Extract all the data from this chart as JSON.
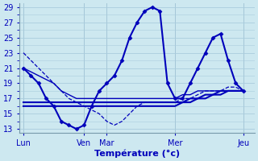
{
  "xlabel": "Température (°c)",
  "ylim": [
    12.5,
    29.5
  ],
  "yticks": [
    13,
    15,
    17,
    19,
    21,
    23,
    25,
    27,
    29
  ],
  "background_color": "#cde8f0",
  "grid_color": "#aaccdd",
  "line_color": "#0000bb",
  "day_labels": [
    "Lun",
    "Ven",
    "Mar",
    "Mer",
    "Jeu"
  ],
  "day_positions": [
    0,
    8,
    11,
    20,
    29
  ],
  "xlim": [
    -0.5,
    30.5
  ],
  "series": [
    {
      "x": [
        0,
        1,
        2,
        3,
        4,
        5,
        6,
        7,
        8,
        9,
        10,
        11,
        12,
        13,
        14,
        15,
        16,
        17,
        18,
        19,
        20,
        21,
        22,
        23,
        24,
        25,
        26,
        27,
        28,
        29
      ],
      "y": [
        21,
        20.5,
        20,
        19.5,
        19,
        18,
        17.5,
        17,
        17,
        17,
        17,
        17,
        17,
        17,
        17,
        17,
        17,
        17,
        17,
        17,
        17,
        17.5,
        17.5,
        18,
        18,
        18,
        18,
        18,
        18,
        18
      ],
      "linestyle": "-",
      "linewidth": 1.0,
      "marker": null
    },
    {
      "x": [
        0,
        1,
        2,
        3,
        4,
        5,
        6,
        7,
        8,
        9,
        10,
        11,
        12,
        13,
        14,
        15,
        16,
        17,
        18,
        19,
        20,
        21,
        22,
        23,
        24,
        25,
        26,
        27,
        28,
        29
      ],
      "y": [
        23,
        22,
        21,
        20,
        19,
        18,
        17,
        16.5,
        16,
        15.5,
        15,
        14,
        13.5,
        14,
        15,
        16,
        16.5,
        16.5,
        16.5,
        16.5,
        16.5,
        17,
        17,
        17.5,
        18,
        18,
        18,
        18.5,
        18.5,
        18
      ],
      "linestyle": "--",
      "linewidth": 0.9,
      "marker": null
    },
    {
      "x": [
        0,
        1,
        2,
        3,
        4,
        5,
        6,
        7,
        8,
        9,
        10,
        11,
        12,
        13,
        14,
        15,
        16,
        17,
        18,
        19,
        20,
        21,
        22,
        23,
        24,
        25,
        26,
        27,
        28,
        29
      ],
      "y": [
        16.5,
        16.5,
        16.5,
        16.5,
        16.5,
        16.5,
        16.5,
        16.5,
        16.5,
        16.5,
        16.5,
        16.5,
        16.5,
        16.5,
        16.5,
        16.5,
        16.5,
        16.5,
        16.5,
        16.5,
        16.5,
        16.5,
        17,
        17,
        17.5,
        17.5,
        18,
        18,
        18,
        18
      ],
      "linestyle": "-",
      "linewidth": 1.5,
      "marker": null
    },
    {
      "x": [
        0,
        1,
        2,
        3,
        4,
        5,
        6,
        7,
        8,
        9,
        10,
        11,
        12,
        13,
        14,
        15,
        16,
        17,
        18,
        19,
        20,
        21,
        22,
        23,
        24,
        25,
        26,
        27,
        28,
        29
      ],
      "y": [
        16,
        16,
        16,
        16,
        16,
        16,
        16,
        16,
        16,
        16,
        16,
        16,
        16,
        16,
        16,
        16,
        16,
        16,
        16,
        16,
        16,
        16.5,
        16.5,
        17,
        17,
        17.5,
        17.5,
        18,
        18,
        18
      ],
      "linestyle": "-",
      "linewidth": 1.5,
      "marker": null
    }
  ],
  "main_series": {
    "x": [
      0,
      1,
      2,
      3,
      4,
      5,
      6,
      7,
      8,
      9,
      10,
      11,
      12,
      13,
      14,
      15,
      16,
      17,
      18,
      19,
      20,
      21,
      22,
      23,
      24,
      25,
      26,
      27,
      28,
      29
    ],
    "y": [
      21,
      20,
      19,
      17,
      16,
      14,
      13.5,
      13,
      13.5,
      16,
      18,
      19,
      20,
      22,
      25,
      27,
      28.5,
      29,
      28.5,
      19,
      17,
      17,
      19,
      21,
      23,
      25,
      25.5,
      22,
      19,
      18
    ]
  }
}
